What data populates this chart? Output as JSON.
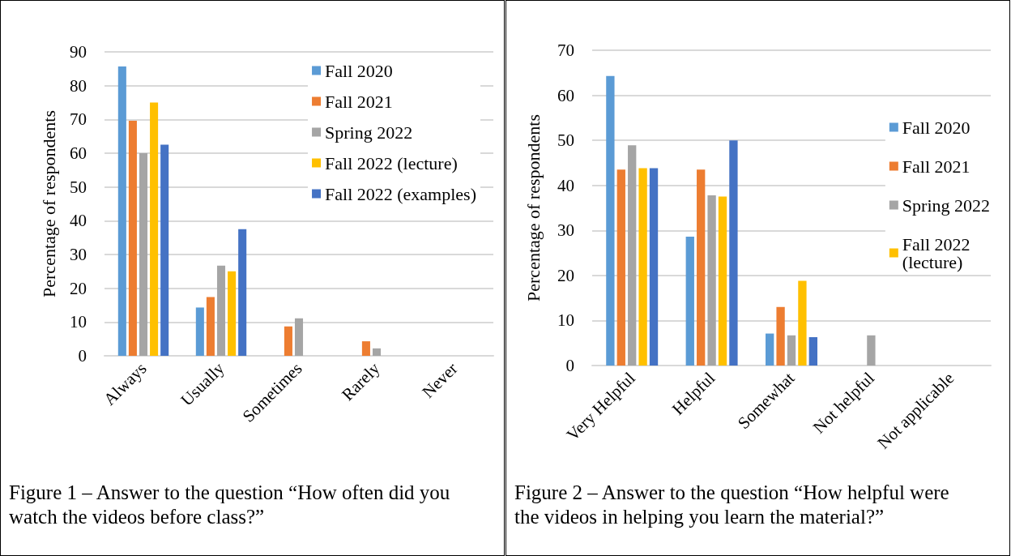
{
  "chart_data": [
    {
      "type": "bar",
      "ylabel": "Percentage of respondents",
      "categories": [
        "Always",
        "Usually",
        "Sometimes",
        "Rarely",
        "Never"
      ],
      "ylim": [
        0,
        90
      ],
      "yticks": [
        0,
        10,
        20,
        30,
        40,
        50,
        60,
        70,
        80,
        90
      ],
      "grid": "y",
      "legend": "top right",
      "series": [
        {
          "name": "Fall 2020",
          "color": "#5b9bd5",
          "values": [
            85.7,
            14.3,
            0,
            0,
            0
          ]
        },
        {
          "name": "Fall 2021",
          "color": "#ed7d31",
          "values": [
            69.6,
            17.4,
            8.7,
            4.3,
            0
          ]
        },
        {
          "name": "Spring 2022",
          "color": "#a5a5a5",
          "values": [
            60,
            26.7,
            11.1,
            2.2,
            0
          ]
        },
        {
          "name": "Fall 2022 (lecture)",
          "color": "#ffc000",
          "values": [
            75,
            25,
            0,
            0,
            0
          ]
        },
        {
          "name": "Fall 2022 (examples)",
          "color": "#4472c4",
          "values": [
            62.5,
            37.5,
            0,
            0,
            0
          ]
        }
      ],
      "annotations": [
        "Figure 1 – Answer to the question “How often did you watch the videos before class?”"
      ]
    },
    {
      "type": "bar",
      "ylabel": "Percentage of respondents",
      "categories": [
        "Very Helpful",
        "Helpful",
        "Somewhat",
        "Not helpful",
        "Not applicable"
      ],
      "ylim": [
        0,
        70
      ],
      "yticks": [
        0,
        10,
        20,
        30,
        40,
        50,
        60,
        70
      ],
      "grid": "y",
      "legend": "right",
      "series": [
        {
          "name": "Fall 2020",
          "color": "#5b9bd5",
          "values": [
            64.3,
            28.6,
            7.1,
            0,
            0
          ]
        },
        {
          "name": "Fall 2021",
          "color": "#ed7d31",
          "values": [
            43.5,
            43.5,
            13,
            0,
            0
          ]
        },
        {
          "name": "Spring 2022",
          "color": "#a5a5a5",
          "values": [
            48.9,
            37.8,
            6.7,
            6.7,
            0
          ]
        },
        {
          "name": "Fall 2022\n(lecture)",
          "color": "#ffc000",
          "values": [
            43.8,
            37.5,
            18.8,
            0,
            0
          ]
        },
        {
          "color": "#4472c4",
          "values": [
            43.8,
            50,
            6.3,
            0,
            0
          ]
        }
      ],
      "annotations": [
        "Figure 2 – Answer to the question “How helpful were the videos in helping you learn the material?”"
      ]
    }
  ]
}
